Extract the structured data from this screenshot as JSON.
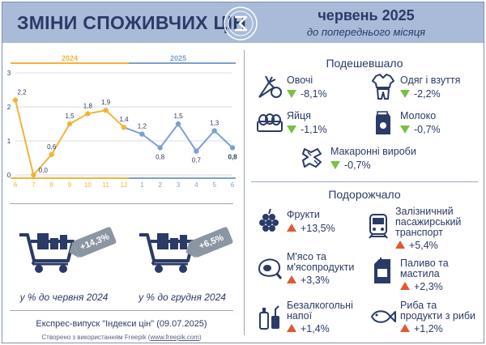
{
  "header": {
    "title": "ЗМІНИ СПОЖИВЧИХ ЦІН",
    "period": "червень 2025",
    "period_sub": "до попереднього місяця"
  },
  "colors": {
    "header_bg": "#a9bbd9",
    "year_2024": "#f0b43a",
    "year_2025": "#7f9fd0",
    "decrease": "#7bbf45",
    "increase": "#e05a30",
    "text": "#2b3a67"
  },
  "chart_data": {
    "type": "line",
    "year_labels": [
      "2024",
      "2025"
    ],
    "categories": [
      "6",
      "7",
      "8",
      "9",
      "10",
      "11",
      "12",
      "1",
      "2",
      "3",
      "4",
      "5",
      "6"
    ],
    "values": [
      2.2,
      0.0,
      0.6,
      1.5,
      1.8,
      1.9,
      1.4,
      1.2,
      0.8,
      1.5,
      0.7,
      1.3,
      0.8
    ],
    "value_labels": [
      "2,2",
      "0,0",
      "0,6",
      "1,5",
      "1,8",
      "1,9",
      "1,4",
      "1,2",
      "0,8",
      "1,5",
      "0,7",
      "1,3",
      "0,8"
    ],
    "yticks": [
      "0",
      "1",
      "2",
      "3"
    ],
    "ylim": [
      0,
      3
    ]
  },
  "carts": [
    {
      "value": "+14,3%",
      "caption": "у % до червня 2024"
    },
    {
      "value": "+6,5%",
      "caption": "у % до грудня 2024"
    }
  ],
  "express": "Експрес-випуск \"Індекси цін\" (09.07.2025)",
  "credit_prefix": "Створено з використанням Freepik (",
  "credit_link": "www.freepik.com",
  "credit_suffix": ")",
  "cheaper": {
    "title": "Подешевшало",
    "items": [
      {
        "name": "Овочі",
        "value": "-8,1%",
        "icon": "vegetables-icon"
      },
      {
        "name": "Одяг і взуття",
        "value": "-2,2%",
        "icon": "clothes-icon"
      },
      {
        "name": "Яйця",
        "value": "-1,1%",
        "icon": "eggs-icon"
      },
      {
        "name": "Молоко",
        "value": "-0,7%",
        "icon": "milk-icon"
      },
      {
        "name": "Макаронні вироби",
        "value": "-0,7%",
        "icon": "pasta-icon"
      }
    ]
  },
  "pricier": {
    "title": "Подорожчало",
    "items": [
      {
        "name": "Фрукти",
        "value": "+13,5%",
        "icon": "fruits-icon"
      },
      {
        "name_lines": [
          "Залізничний",
          "пасажирський",
          "транспорт"
        ],
        "value": "+5,4%",
        "icon": "train-icon"
      },
      {
        "name_lines": [
          "М'ясо та",
          "м'ясопродукти"
        ],
        "value": "+3,3%",
        "icon": "meat-icon"
      },
      {
        "name_lines": [
          "Паливо та",
          "мастила"
        ],
        "value": "+2,3%",
        "icon": "fuel-icon"
      },
      {
        "name_lines": [
          "Безалкогольні",
          "напої"
        ],
        "value": "+1,4%",
        "icon": "drinks-icon"
      },
      {
        "name_lines": [
          "Риба та",
          "продукти з риби"
        ],
        "value": "+1,2%",
        "icon": "fish-icon"
      }
    ]
  }
}
